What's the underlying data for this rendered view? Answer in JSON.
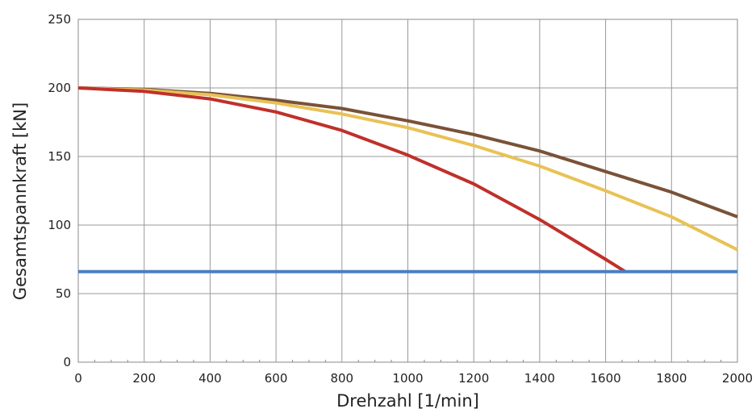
{
  "chart_data": {
    "type": "line",
    "title": "",
    "xlabel": "Drehzahl [1/min]",
    "ylabel": "Gesamtspannkraft [kN]",
    "xlim": [
      0,
      2000
    ],
    "ylim": [
      0,
      250
    ],
    "x_ticks": [
      "0",
      "200",
      "400",
      "600",
      "800",
      "1000",
      "1200",
      "1400",
      "1600",
      "1800",
      "2000"
    ],
    "y_ticks": [
      "0",
      "50",
      "100",
      "150",
      "200",
      "250"
    ],
    "grid": true,
    "legend": "none",
    "series": [
      {
        "color": "#7a5238",
        "points": [
          [
            0,
            200
          ],
          [
            200,
            199
          ],
          [
            400,
            196
          ],
          [
            600,
            191
          ],
          [
            800,
            185
          ],
          [
            1000,
            176
          ],
          [
            1200,
            166
          ],
          [
            1400,
            154
          ],
          [
            1600,
            139
          ],
          [
            1800,
            124
          ],
          [
            2000,
            106
          ]
        ]
      },
      {
        "color": "#e8c256",
        "points": [
          [
            0,
            200
          ],
          [
            200,
            198.5
          ],
          [
            400,
            195
          ],
          [
            600,
            189
          ],
          [
            800,
            181
          ],
          [
            1000,
            171
          ],
          [
            1200,
            158
          ],
          [
            1400,
            143
          ],
          [
            1600,
            125
          ],
          [
            1800,
            106
          ],
          [
            2000,
            82
          ]
        ]
      },
      {
        "color": "#c0302a",
        "points": [
          [
            0,
            200
          ],
          [
            200,
            197.5
          ],
          [
            400,
            192
          ],
          [
            600,
            182.5
          ],
          [
            800,
            169
          ],
          [
            1000,
            151
          ],
          [
            1200,
            130
          ],
          [
            1400,
            104
          ],
          [
            1600,
            75
          ],
          [
            1660,
            66
          ]
        ]
      },
      {
        "color": "#4a7fc0",
        "points": [
          [
            0,
            66
          ],
          [
            2000,
            66
          ]
        ]
      }
    ]
  }
}
